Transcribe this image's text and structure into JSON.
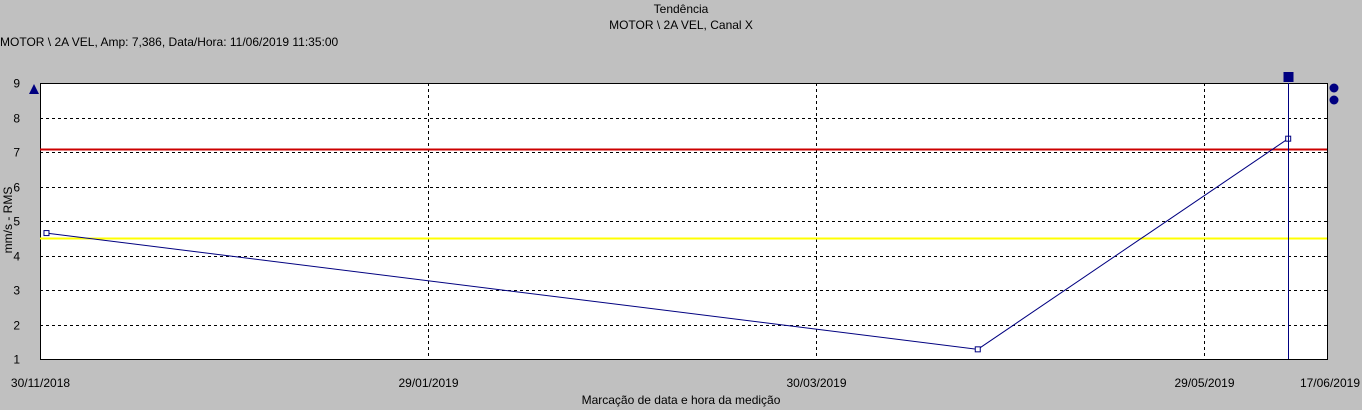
{
  "header": {
    "title": "Tendência",
    "subtitle": "MOTOR \\ 2A VEL, Canal X",
    "cursor_info": "MOTOR \\ 2A VEL, Amp: 7,386, Data/Hora: 11/06/2019 11:35:00"
  },
  "chart_data": {
    "type": "line",
    "xlabel": "Marcação de data e hora da medição",
    "ylabel": "mm/s - RMS",
    "ylim": [
      1,
      9
    ],
    "yticks": [
      "1",
      "2",
      "3",
      "4",
      "5",
      "6",
      "7",
      "8",
      "9"
    ],
    "xticks": [
      "30/11/2018",
      "29/01/2019",
      "30/03/2019",
      "29/05/2019",
      "17/06/2019"
    ],
    "xlim": [
      "2018-11-30",
      "2019-06-17"
    ],
    "grid": true,
    "series": [
      {
        "color": "#000080",
        "x": [
          "2018-12-01",
          "2019-04-24",
          "2019-06-11"
        ],
        "y": [
          4.65,
          1.28,
          7.386
        ]
      }
    ],
    "thresholds": [
      {
        "value": 7.1,
        "color": "#cc0000"
      },
      {
        "value": 4.5,
        "color": "#ffff00"
      }
    ],
    "cursor": {
      "x": "2019-06-11",
      "y": 7.386
    },
    "colors": {
      "background": "#c0c0c0",
      "plot_background": "#ffffff",
      "marker": "#000080"
    }
  }
}
